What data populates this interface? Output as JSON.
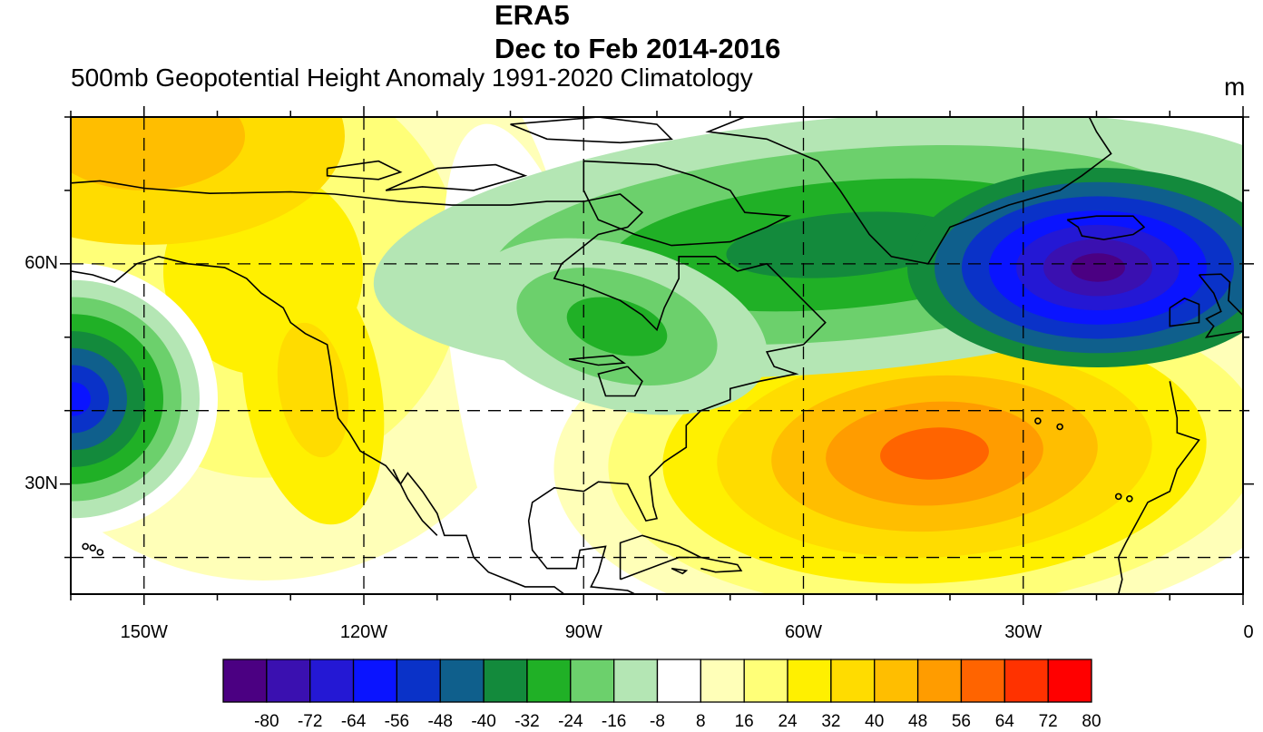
{
  "title": "ERA5",
  "subtitle_period": "Dec to Feb 2014-2016",
  "subtitle": "500mb Geopotential Height Anomaly  1991-2020 Climatology",
  "units": "m",
  "map": {
    "lon_range": [
      -160,
      0
    ],
    "lat_range": [
      15,
      80
    ],
    "grid_lon": [
      -150,
      -120,
      -90,
      -60,
      -30
    ],
    "grid_lat": [
      20,
      40,
      60
    ],
    "lat_labels": [
      {
        "lat": 60,
        "text": "60N"
      },
      {
        "lat": 30,
        "text": "30N"
      }
    ],
    "lon_labels": [
      {
        "lon": -150,
        "text": "150W"
      },
      {
        "lon": -120,
        "text": "120W"
      },
      {
        "lon": -90,
        "text": "90W"
      },
      {
        "lon": -60,
        "text": "60W"
      },
      {
        "lon": -30,
        "text": "30W"
      },
      {
        "lon": 0,
        "text": "0"
      }
    ]
  },
  "colorbar": {
    "labels": [
      "-80",
      "-72",
      "-64",
      "-56",
      "-48",
      "-40",
      "-32",
      "-24",
      "-16",
      "-8",
      "8",
      "16",
      "24",
      "32",
      "40",
      "48",
      "56",
      "64",
      "72",
      "80"
    ],
    "colors": [
      "#4b0082",
      "#3a10b0",
      "#2418d4",
      "#0a14ff",
      "#0a32c8",
      "#0f5f8c",
      "#138a3c",
      "#20b026",
      "#6cd06c",
      "#b4e6b4",
      "#ffffff",
      "#ffffb8",
      "#ffff78",
      "#fff000",
      "#ffdc00",
      "#ffbe00",
      "#ff9c00",
      "#ff6400",
      "#ff3200",
      "#ff0000"
    ]
  },
  "chart_data": {
    "type": "heatmap",
    "title": "ERA5",
    "variable": "500mb Geopotential Height Anomaly",
    "period": "Dec to Feb 2014-2016",
    "climatology": "1991-2020 Climatology",
    "units": "m",
    "x_range": [
      -160,
      0
    ],
    "y_range": [
      15,
      80
    ],
    "levels": [
      -80,
      -72,
      -64,
      -56,
      -48,
      -40,
      -32,
      -24,
      -16,
      -8,
      8,
      16,
      24,
      32,
      40,
      48,
      56,
      64,
      72,
      80
    ],
    "features": [
      {
        "lon": -17,
        "lat": 60,
        "value": -88
      },
      {
        "lon": -92,
        "lat": 54,
        "value": -40
      },
      {
        "lon": -160,
        "lat": 40,
        "value": -60
      },
      {
        "lon": -48,
        "lat": 40,
        "value": 62
      },
      {
        "lon": -158,
        "lat": 76,
        "value": 46
      },
      {
        "lon": -122,
        "lat": 40,
        "value": 40
      }
    ]
  }
}
